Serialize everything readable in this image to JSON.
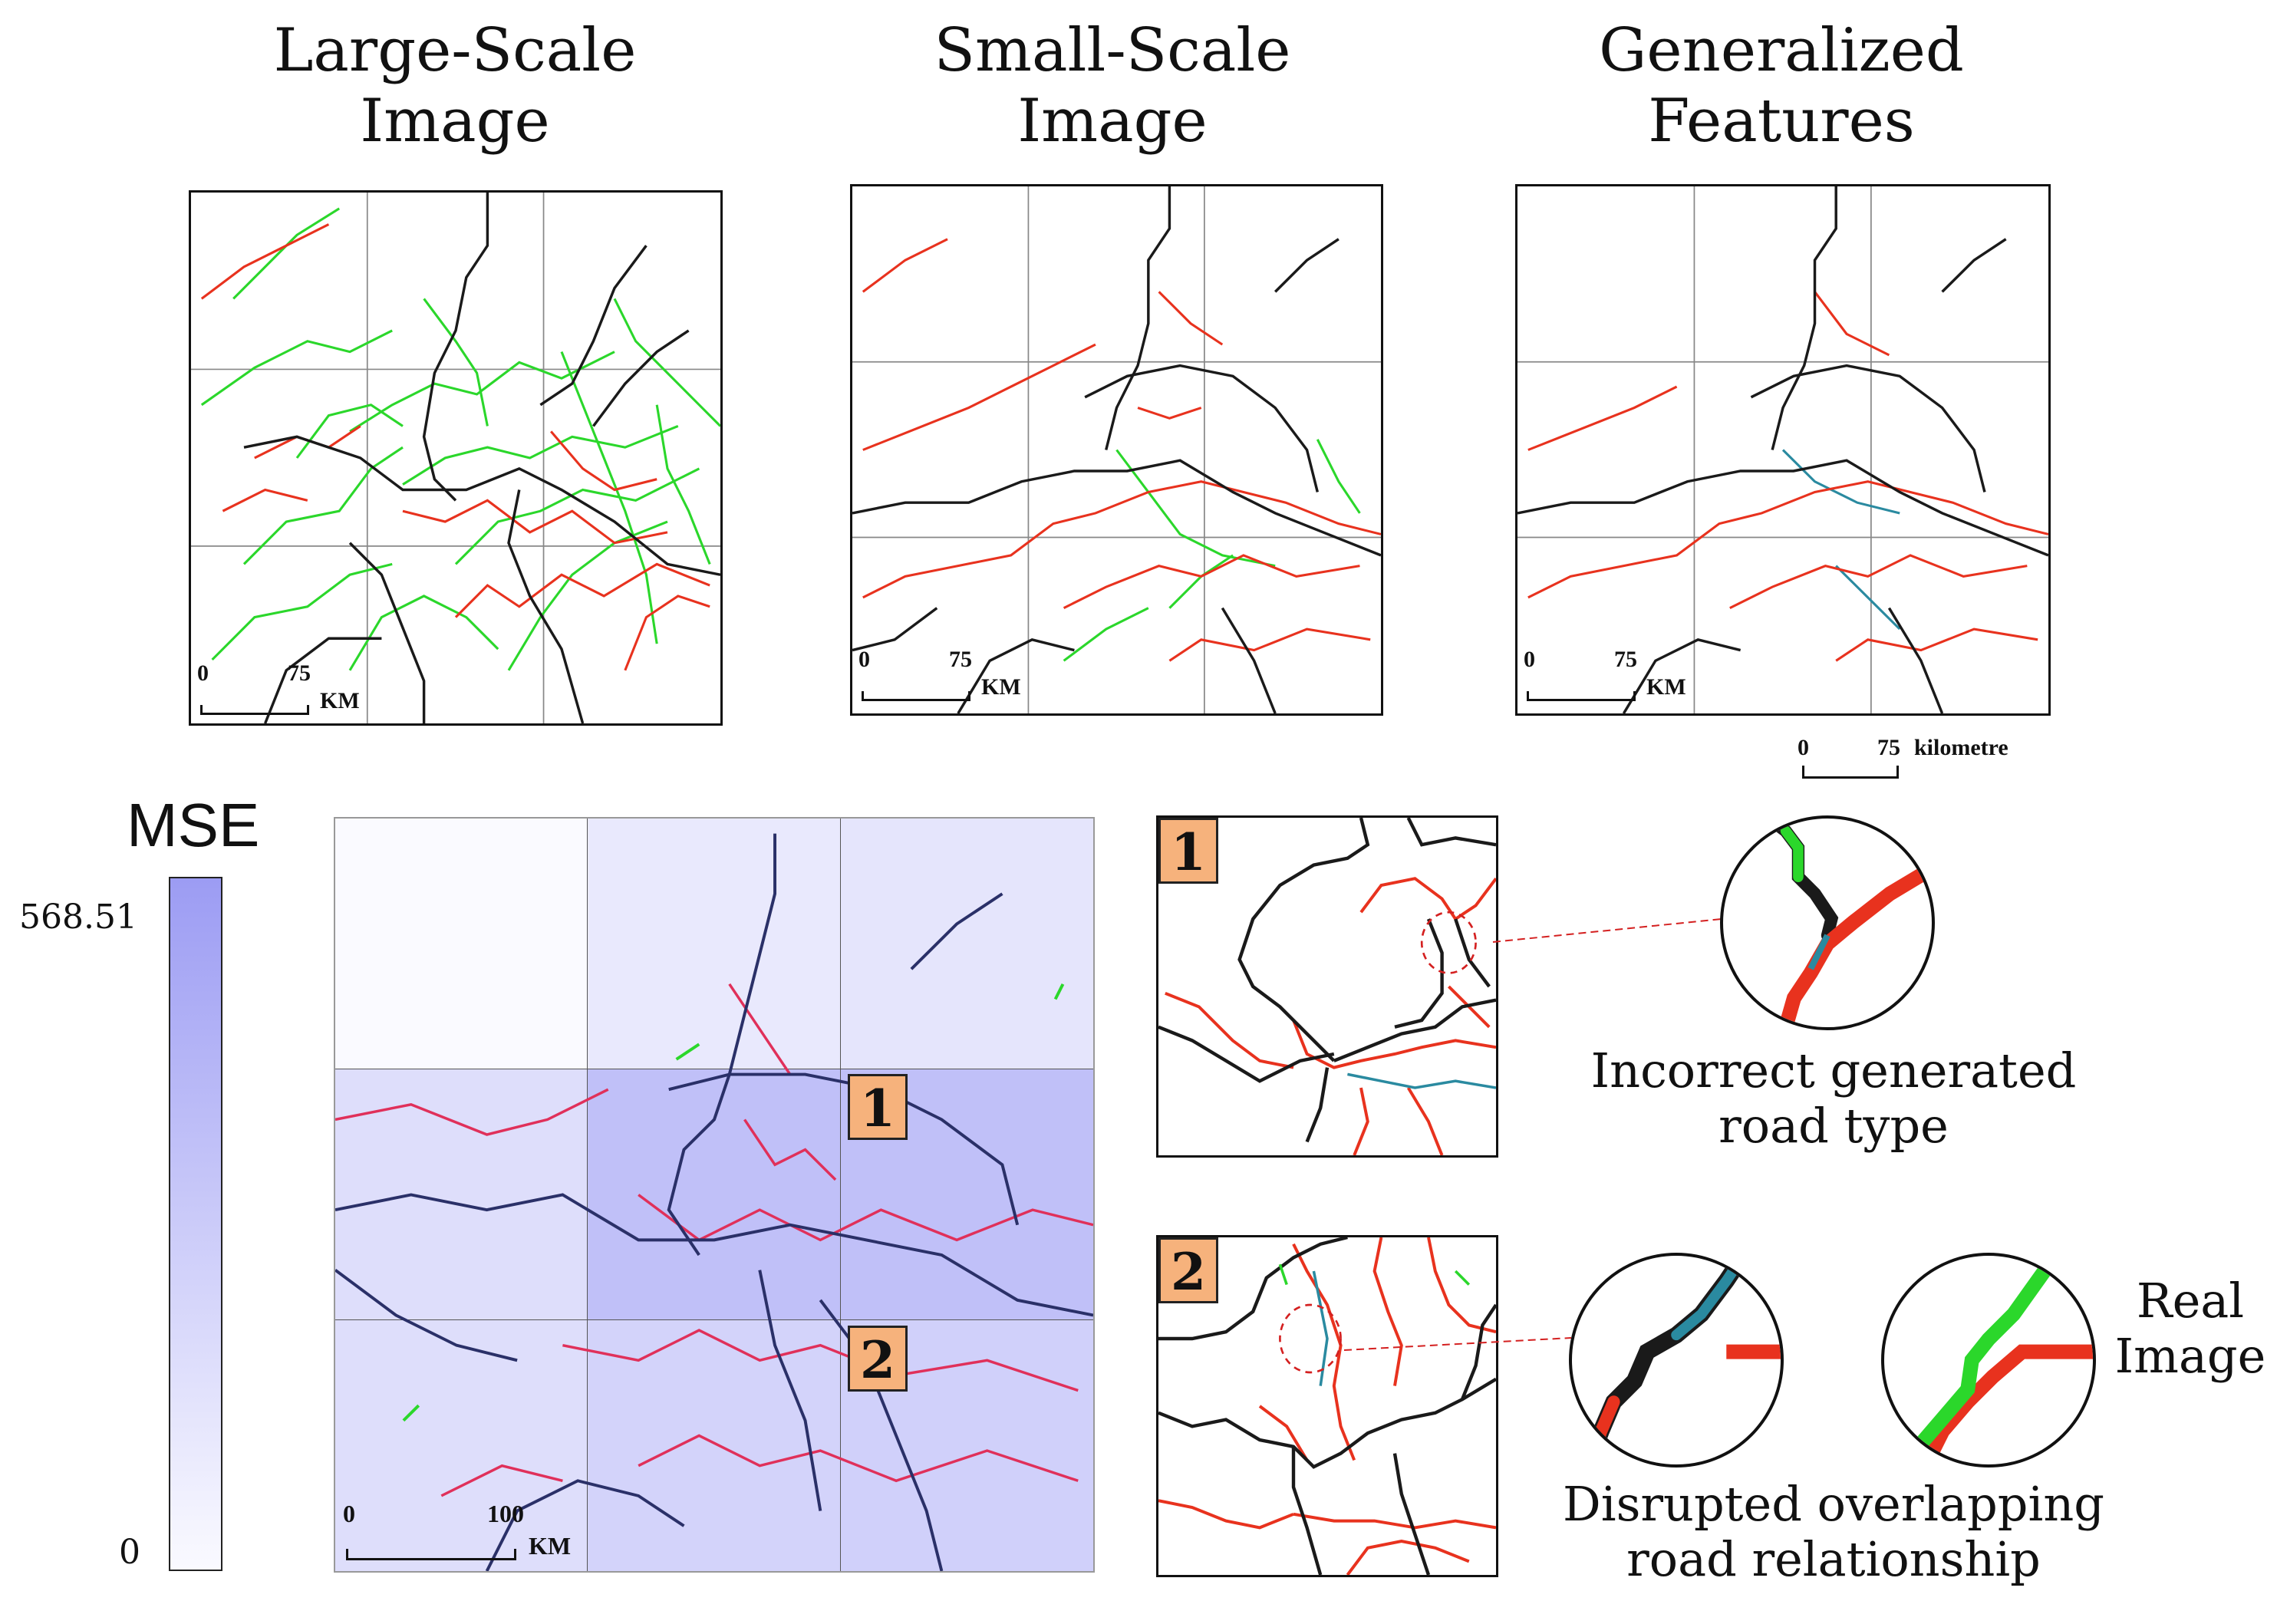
{
  "titles": {
    "large_scale": "Large-Scale\nImage",
    "small_scale": "Small-Scale\nImage",
    "generalized": "Generalized\nFeatures"
  },
  "scale_bars": {
    "top_zero": "0",
    "top_value": "75",
    "top_unit": "KM",
    "legend_zero": "0",
    "legend_value": "75",
    "legend_unit": "kilometre",
    "bottom_zero": "0",
    "bottom_value": "100",
    "bottom_unit": "KM"
  },
  "mse": {
    "title": "MSE",
    "max_label": "568.51",
    "min_label": "0",
    "colors": {
      "high": "#9c9cf3",
      "low": "#fafaff"
    }
  },
  "badges": {
    "one": "1",
    "two": "2"
  },
  "captions": {
    "incorrect": "Incorrect generated\nroad type",
    "disrupted": "Disrupted overlapping\nroad relationship",
    "real": "Real\nImage"
  },
  "colors": {
    "primary_road": "#1a1a1a",
    "secondary_road": "#e8321e",
    "tertiary_road": "#2bd72b",
    "generated_cyan": "#2a8aa0",
    "highlight_circle": "#d42020"
  },
  "heatmap_cells": [
    [
      0.0,
      0.18,
      0.22
    ],
    [
      0.3,
      0.62,
      0.62
    ],
    [
      0.3,
      0.42,
      0.45
    ]
  ]
}
